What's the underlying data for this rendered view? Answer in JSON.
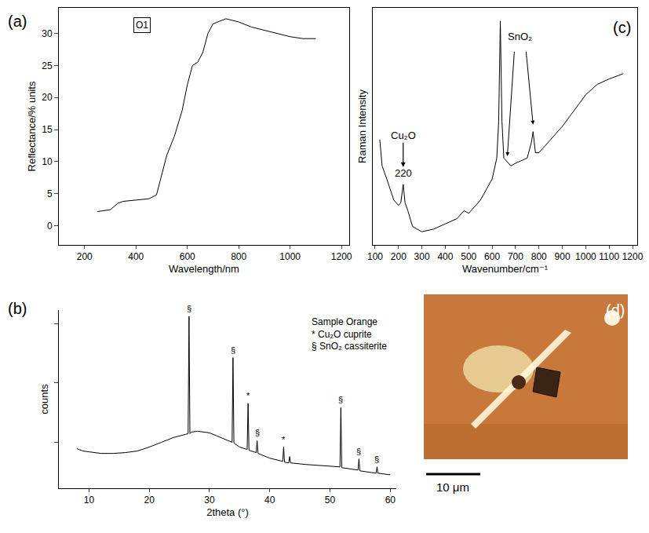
{
  "chart_data": [
    {
      "panel": "(a)",
      "type": "line",
      "color": "#000000",
      "grid": false,
      "inset_label": "O1",
      "x_label": "Wavelength/nm",
      "y_label": "Reflectance/% units",
      "x": [
        250,
        300,
        330,
        350,
        400,
        450,
        480,
        500,
        520,
        550,
        580,
        600,
        620,
        640,
        660,
        680,
        700,
        750,
        800,
        850,
        900,
        950,
        1000,
        1050,
        1100
      ],
      "values": [
        2.2,
        2.5,
        3.5,
        3.8,
        4.0,
        4.2,
        4.8,
        8,
        11,
        14,
        18,
        22,
        25,
        25.5,
        27,
        30,
        31.5,
        32.3,
        31.8,
        31,
        30.5,
        30,
        29.5,
        29.2,
        29.2
      ],
      "xlim": [
        100,
        1230
      ],
      "xticks": [
        200,
        400,
        600,
        800,
        1000,
        1200
      ],
      "ylim": [
        -3,
        34
      ],
      "yticks": [
        0,
        5,
        10,
        15,
        20,
        25,
        30
      ]
    },
    {
      "panel": "(c)",
      "type": "line",
      "color": "#000000",
      "grid": false,
      "tick_labels": "x",
      "x_label": "Wavenumber/cm⁻¹",
      "y_label": "Raman Intensity",
      "x": [
        120,
        130,
        150,
        180,
        200,
        210,
        220,
        228,
        240,
        260,
        300,
        350,
        400,
        450,
        480,
        500,
        550,
        600,
        620,
        628,
        635,
        642,
        650,
        680,
        700,
        750,
        768,
        775,
        785,
        800,
        850,
        900,
        950,
        1000,
        1050,
        1100,
        1160
      ],
      "values": [
        55,
        45,
        40,
        32,
        30,
        31,
        38,
        31,
        28,
        22,
        20,
        21,
        23,
        25,
        28,
        27,
        32,
        40,
        48,
        62,
        100,
        62,
        48,
        45,
        46,
        48,
        54,
        58,
        50,
        50,
        55,
        60,
        66,
        72,
        76,
        78,
        80
      ],
      "xlim": [
        90,
        1220
      ],
      "xticks": [
        100,
        200,
        300,
        400,
        500,
        600,
        700,
        800,
        900,
        1000,
        1100,
        1200
      ],
      "ylim": [
        15,
        105
      ],
      "annotations": [
        {
          "text": "Cu₂O",
          "x": 220,
          "y": 38,
          "peak_label": 220
        },
        {
          "text": "SnO₂",
          "targets": [
            [
              665,
              46
            ],
            [
              775,
              58
            ]
          ]
        }
      ]
    },
    {
      "panel": "(b)",
      "type": "line",
      "color": "#000000",
      "grid": false,
      "tick_labels": "x",
      "x_label": "2theta (°)",
      "y_label": "counts",
      "legend_texts": [
        "Sample Orange",
        "* Cu₂O cuprite",
        "§ SnO₂ cassiterite"
      ],
      "x": [
        8,
        9,
        10,
        12,
        14,
        16,
        18,
        20,
        22,
        24,
        26,
        26.45,
        26.6,
        26.75,
        27,
        28,
        30,
        32,
        33.75,
        33.9,
        34.05,
        35,
        36.25,
        36.4,
        36.55,
        37.75,
        37.9,
        38.05,
        40,
        42.15,
        42.3,
        42.45,
        43.15,
        43.3,
        43.45,
        46,
        48,
        50,
        51.65,
        51.8,
        51.95,
        54.65,
        54.8,
        54.95,
        57.65,
        57.8,
        57.95,
        60
      ],
      "values": [
        50,
        47,
        46,
        44,
        44,
        45,
        47,
        52,
        58,
        64,
        68,
        69,
        217,
        69,
        71,
        72,
        70,
        64,
        58,
        165,
        57,
        52,
        49,
        107,
        48,
        45,
        60,
        44,
        38,
        34,
        52,
        33,
        32,
        40,
        32,
        30,
        29,
        28,
        27,
        102,
        26,
        23,
        37,
        22,
        19,
        27,
        19,
        17
      ],
      "xlim": [
        5,
        61
      ],
      "xticks": [
        10,
        20,
        30,
        40,
        50,
        60
      ],
      "ylim": [
        0,
        225
      ],
      "yticks": [
        58,
        133,
        208
      ],
      "peak_marks": [
        {
          "x": 26.6,
          "y": 217,
          "label": "§"
        },
        {
          "x": 33.9,
          "y": 165,
          "label": "§"
        },
        {
          "x": 36.4,
          "y": 107,
          "label": "*"
        },
        {
          "x": 37.9,
          "y": 60,
          "label": "§"
        },
        {
          "x": 42.3,
          "y": 52,
          "label": "*"
        },
        {
          "x": 51.8,
          "y": 102,
          "label": "§"
        },
        {
          "x": 54.8,
          "y": 37,
          "label": "§"
        },
        {
          "x": 57.8,
          "y": 27,
          "label": "§"
        }
      ]
    }
  ],
  "photo": {
    "panel": "(d)",
    "scale_bar": "10 μm"
  }
}
